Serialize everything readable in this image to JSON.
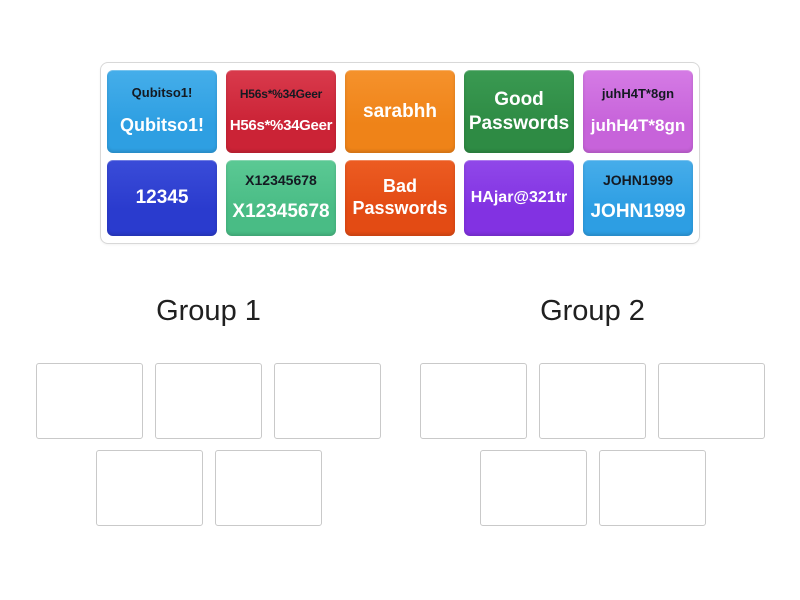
{
  "tray": {
    "tiles": [
      {
        "top": "Qubitso1!",
        "main": "Qubitso1!",
        "color": "#2E9FE2",
        "color_light": "#45AEEA"
      },
      {
        "top": "H56s*%34Geer",
        "main": "H56s*%34Geer",
        "color": "#CB2336",
        "color_light": "#D93A4C"
      },
      {
        "top": "",
        "main": "sarabhh",
        "color": "#EF8318",
        "color_light": "#F5922C"
      },
      {
        "top": "",
        "main": "Good Passwords",
        "color": "#2E8B44",
        "color_light": "#3A9A52"
      },
      {
        "top": "juhH4T*8gn",
        "main": "juhH4T*8gn",
        "color": "#C763DA",
        "color_light": "#D57BE5"
      },
      {
        "top": "",
        "main": "12345",
        "color": "#2A3BCE",
        "color_light": "#3A4CD8"
      },
      {
        "top": "X12345678",
        "main": "X12345678",
        "color": "#49BC85",
        "color_light": "#5BC994"
      },
      {
        "top": "",
        "main": "Bad Passwords",
        "color": "#E34B14",
        "color_light": "#EC5C22"
      },
      {
        "top": "",
        "main": "HAjar@321tr",
        "color": "#8232E2",
        "color_light": "#9048E9"
      },
      {
        "top": "JOHN1999",
        "main": "JOHN1999",
        "color": "#2D9EE3",
        "color_light": "#47ADEA"
      }
    ]
  },
  "groups": [
    {
      "label": "Group 1",
      "slot_count": 5
    },
    {
      "label": "Group 2",
      "slot_count": 5
    }
  ]
}
